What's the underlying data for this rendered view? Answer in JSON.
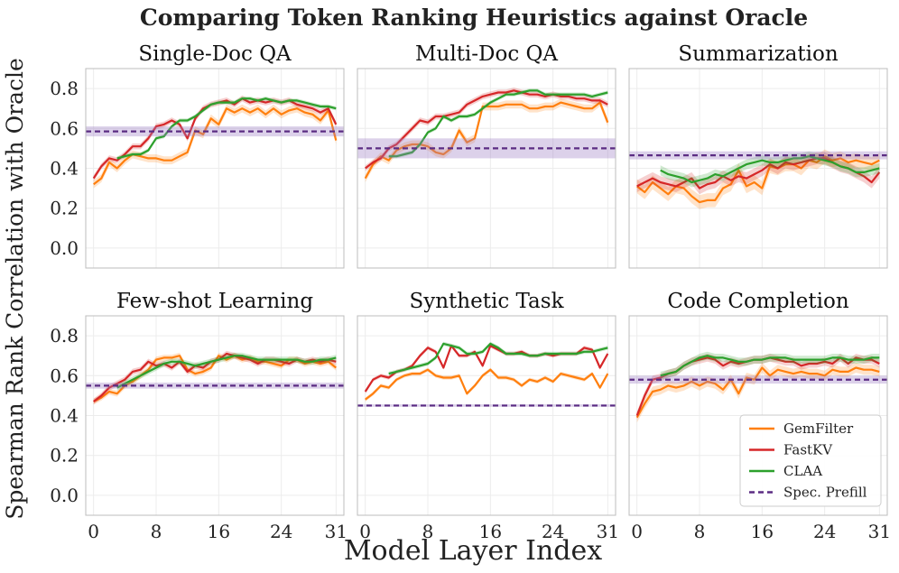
{
  "chart_data": {
    "type": "line",
    "title": "Comparing Token Ranking Heuristics against Oracle",
    "xlabel": "Model Layer Index",
    "ylabel": "Spearman Rank Correlation with Oracle",
    "xlim": [
      -1,
      32
    ],
    "ylim": [
      -0.1,
      0.9
    ],
    "xticks": [
      0,
      8,
      16,
      24,
      31
    ],
    "yticks": [
      0.0,
      0.2,
      0.4,
      0.6,
      0.8
    ],
    "grid": true,
    "legend": {
      "placement": "lower-right (Code Completion panel)",
      "entries": [
        {
          "name": "GemFilter",
          "color": "#ff7f0e",
          "style": "solid"
        },
        {
          "name": "FastKV",
          "color": "#d62728",
          "style": "solid"
        },
        {
          "name": "CLAA",
          "color": "#2ca02c",
          "style": "solid"
        },
        {
          "name": "Spec. Prefill",
          "color": "#5b2c83",
          "style": "dashed"
        }
      ]
    },
    "colors": {
      "GemFilter": "#ff7f0e",
      "FastKV": "#d62728",
      "CLAA": "#2ca02c",
      "Spec. Prefill": "#5b2c83"
    },
    "panels": [
      {
        "title": "Single-Doc QA",
        "series": [
          {
            "name": "GemFilter",
            "x_start": 0,
            "band": 0.02,
            "values": [
              0.32,
              0.35,
              0.43,
              0.4,
              0.44,
              0.47,
              0.46,
              0.45,
              0.45,
              0.44,
              0.44,
              0.46,
              0.48,
              0.59,
              0.57,
              0.65,
              0.62,
              0.7,
              0.68,
              0.7,
              0.68,
              0.7,
              0.67,
              0.7,
              0.67,
              0.69,
              0.7,
              0.68,
              0.67,
              0.64,
              0.69,
              0.54
            ]
          },
          {
            "name": "FastKV",
            "x_start": 0,
            "band": 0.015,
            "values": [
              0.35,
              0.41,
              0.45,
              0.44,
              0.47,
              0.51,
              0.51,
              0.55,
              0.61,
              0.62,
              0.64,
              0.62,
              0.55,
              0.65,
              0.7,
              0.72,
              0.73,
              0.74,
              0.72,
              0.75,
              0.73,
              0.74,
              0.73,
              0.74,
              0.73,
              0.74,
              0.72,
              0.71,
              0.7,
              0.68,
              0.7,
              0.62
            ]
          },
          {
            "name": "CLAA",
            "x_start": 3,
            "band": 0.01,
            "values": [
              0.45,
              0.46,
              0.47,
              0.47,
              0.49,
              0.55,
              0.56,
              0.61,
              0.64,
              0.64,
              0.66,
              0.69,
              0.72,
              0.73,
              0.73,
              0.73,
              0.75,
              0.75,
              0.74,
              0.75,
              0.74,
              0.73,
              0.74,
              0.74,
              0.73,
              0.72,
              0.71,
              0.71,
              0.7
            ]
          },
          {
            "name": "Spec. Prefill",
            "value": 0.585,
            "band": 0.025
          }
        ]
      },
      {
        "title": "Multi-Doc QA",
        "series": [
          {
            "name": "GemFilter",
            "x_start": 0,
            "band": 0.02,
            "values": [
              0.35,
              0.42,
              0.46,
              0.44,
              0.49,
              0.51,
              0.52,
              0.52,
              0.51,
              0.48,
              0.47,
              0.5,
              0.59,
              0.53,
              0.55,
              0.71,
              0.71,
              0.71,
              0.72,
              0.72,
              0.72,
              0.7,
              0.7,
              0.71,
              0.71,
              0.73,
              0.72,
              0.71,
              0.7,
              0.7,
              0.73,
              0.63
            ]
          },
          {
            "name": "FastKV",
            "x_start": 0,
            "band": 0.015,
            "values": [
              0.4,
              0.43,
              0.45,
              0.5,
              0.52,
              0.56,
              0.6,
              0.64,
              0.63,
              0.66,
              0.66,
              0.67,
              0.68,
              0.72,
              0.74,
              0.76,
              0.77,
              0.78,
              0.78,
              0.79,
              0.78,
              0.77,
              0.77,
              0.76,
              0.77,
              0.76,
              0.76,
              0.75,
              0.75,
              0.74,
              0.74,
              0.72
            ]
          },
          {
            "name": "CLAA",
            "x_start": 3,
            "band": 0.01,
            "values": [
              0.46,
              0.46,
              0.47,
              0.48,
              0.52,
              0.58,
              0.6,
              0.66,
              0.64,
              0.66,
              0.66,
              0.67,
              0.7,
              0.73,
              0.75,
              0.77,
              0.77,
              0.78,
              0.79,
              0.79,
              0.77,
              0.77,
              0.77,
              0.77,
              0.77,
              0.77,
              0.76,
              0.77,
              0.78
            ]
          },
          {
            "name": "Spec. Prefill",
            "value": 0.5,
            "band": 0.05
          }
        ]
      },
      {
        "title": "Summarization",
        "series": [
          {
            "name": "GemFilter",
            "x_start": 0,
            "band": 0.035,
            "values": [
              0.31,
              0.28,
              0.33,
              0.3,
              0.27,
              0.31,
              0.3,
              0.26,
              0.23,
              0.24,
              0.24,
              0.3,
              0.32,
              0.39,
              0.31,
              0.33,
              0.3,
              0.41,
              0.4,
              0.42,
              0.42,
              0.4,
              0.44,
              0.43,
              0.46,
              0.44,
              0.45,
              0.43,
              0.44,
              0.43,
              0.42,
              0.44
            ]
          },
          {
            "name": "FastKV",
            "x_start": 0,
            "band": 0.03,
            "values": [
              0.31,
              0.33,
              0.35,
              0.33,
              0.32,
              0.31,
              0.33,
              0.35,
              0.3,
              0.32,
              0.33,
              0.36,
              0.34,
              0.36,
              0.35,
              0.37,
              0.39,
              0.42,
              0.4,
              0.43,
              0.42,
              0.43,
              0.44,
              0.45,
              0.45,
              0.43,
              0.41,
              0.4,
              0.38,
              0.36,
              0.33,
              0.38
            ]
          },
          {
            "name": "CLAA",
            "x_start": 3,
            "band": 0.025,
            "values": [
              0.39,
              0.37,
              0.36,
              0.35,
              0.33,
              0.34,
              0.35,
              0.37,
              0.36,
              0.38,
              0.4,
              0.42,
              0.43,
              0.44,
              0.43,
              0.43,
              0.44,
              0.45,
              0.45,
              0.46,
              0.45,
              0.44,
              0.43,
              0.41,
              0.4,
              0.38,
              0.38,
              0.39,
              0.4
            ]
          },
          {
            "name": "Spec. Prefill",
            "value": 0.465,
            "band": 0.02
          }
        ]
      },
      {
        "title": "Few-shot Learning",
        "series": [
          {
            "name": "GemFilter",
            "x_start": 0,
            "band": 0.015,
            "values": [
              0.47,
              0.49,
              0.52,
              0.51,
              0.55,
              0.57,
              0.6,
              0.63,
              0.68,
              0.69,
              0.69,
              0.7,
              0.63,
              0.61,
              0.62,
              0.64,
              0.7,
              0.68,
              0.7,
              0.68,
              0.69,
              0.67,
              0.67,
              0.66,
              0.65,
              0.68,
              0.68,
              0.66,
              0.67,
              0.66,
              0.67,
              0.64
            ]
          },
          {
            "name": "FastKV",
            "x_start": 0,
            "band": 0.015,
            "values": [
              0.47,
              0.5,
              0.54,
              0.56,
              0.58,
              0.62,
              0.63,
              0.67,
              0.65,
              0.66,
              0.64,
              0.67,
              0.62,
              0.65,
              0.64,
              0.67,
              0.68,
              0.71,
              0.7,
              0.69,
              0.68,
              0.66,
              0.68,
              0.68,
              0.67,
              0.66,
              0.68,
              0.67,
              0.68,
              0.67,
              0.68,
              0.67
            ]
          },
          {
            "name": "CLAA",
            "x_start": 3,
            "band": 0.015,
            "values": [
              0.54,
              0.56,
              0.58,
              0.6,
              0.62,
              0.64,
              0.66,
              0.67,
              0.67,
              0.66,
              0.65,
              0.66,
              0.67,
              0.68,
              0.69,
              0.7,
              0.7,
              0.69,
              0.68,
              0.68,
              0.68,
              0.68,
              0.68,
              0.68,
              0.67,
              0.67,
              0.68,
              0.68,
              0.69
            ]
          },
          {
            "name": "Spec. Prefill",
            "value": 0.55,
            "band": 0.015
          }
        ]
      },
      {
        "title": "Synthetic Task",
        "series": [
          {
            "name": "GemFilter",
            "x_start": 0,
            "band": 0.01,
            "values": [
              0.48,
              0.51,
              0.55,
              0.54,
              0.58,
              0.6,
              0.61,
              0.61,
              0.63,
              0.6,
              0.59,
              0.59,
              0.6,
              0.51,
              0.55,
              0.6,
              0.63,
              0.59,
              0.59,
              0.58,
              0.55,
              0.58,
              0.57,
              0.59,
              0.57,
              0.61,
              0.6,
              0.59,
              0.58,
              0.61,
              0.54,
              0.61
            ]
          },
          {
            "name": "FastKV",
            "x_start": 0,
            "band": 0.01,
            "values": [
              0.52,
              0.58,
              0.6,
              0.59,
              0.62,
              0.63,
              0.65,
              0.7,
              0.74,
              0.72,
              0.64,
              0.75,
              0.7,
              0.7,
              0.72,
              0.65,
              0.75,
              0.73,
              0.71,
              0.71,
              0.72,
              0.7,
              0.7,
              0.71,
              0.7,
              0.71,
              0.71,
              0.71,
              0.74,
              0.73,
              0.64,
              0.71
            ]
          },
          {
            "name": "CLAA",
            "x_start": 3,
            "band": 0.01,
            "values": [
              0.61,
              0.62,
              0.63,
              0.64,
              0.65,
              0.66,
              0.69,
              0.76,
              0.75,
              0.74,
              0.71,
              0.71,
              0.72,
              0.76,
              0.74,
              0.71,
              0.71,
              0.71,
              0.7,
              0.7,
              0.71,
              0.71,
              0.71,
              0.71,
              0.71,
              0.72,
              0.72,
              0.73,
              0.74
            ]
          },
          {
            "name": "Spec. Prefill",
            "value": 0.45,
            "band": 0.006
          }
        ]
      },
      {
        "title": "Code Completion",
        "series": [
          {
            "name": "GemFilter",
            "x_start": 0,
            "band": 0.025,
            "values": [
              0.39,
              0.46,
              0.52,
              0.53,
              0.55,
              0.54,
              0.55,
              0.57,
              0.55,
              0.57,
              0.56,
              0.53,
              0.58,
              0.51,
              0.59,
              0.58,
              0.64,
              0.6,
              0.63,
              0.62,
              0.61,
              0.62,
              0.61,
              0.61,
              0.6,
              0.63,
              0.62,
              0.62,
              0.64,
              0.63,
              0.63,
              0.62
            ]
          },
          {
            "name": "FastKV",
            "x_start": 0,
            "band": 0.02,
            "values": [
              0.4,
              0.5,
              0.58,
              0.59,
              0.61,
              0.62,
              0.65,
              0.67,
              0.68,
              0.69,
              0.68,
              0.65,
              0.67,
              0.66,
              0.67,
              0.68,
              0.68,
              0.69,
              0.68,
              0.67,
              0.67,
              0.65,
              0.66,
              0.66,
              0.67,
              0.66,
              0.69,
              0.66,
              0.69,
              0.68,
              0.68,
              0.66
            ]
          },
          {
            "name": "CLAA",
            "x_start": 3,
            "band": 0.02,
            "values": [
              0.6,
              0.61,
              0.62,
              0.65,
              0.67,
              0.69,
              0.7,
              0.69,
              0.69,
              0.68,
              0.67,
              0.67,
              0.68,
              0.68,
              0.69,
              0.69,
              0.69,
              0.68,
              0.68,
              0.68,
              0.68,
              0.68,
              0.69,
              0.69,
              0.68,
              0.68,
              0.68,
              0.69,
              0.69
            ]
          },
          {
            "name": "Spec. Prefill",
            "value": 0.58,
            "band": 0.02
          }
        ]
      }
    ]
  }
}
